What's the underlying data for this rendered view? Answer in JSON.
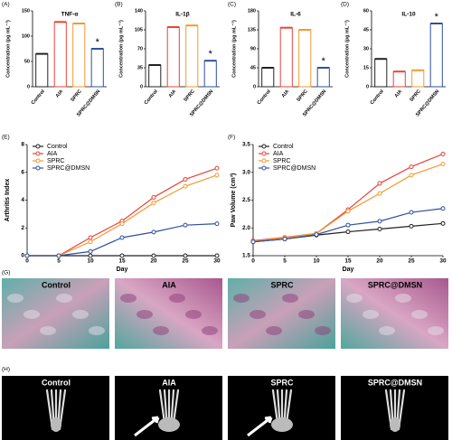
{
  "chart_data": [
    {
      "type": "bar",
      "panel_label": "(A)",
      "title": "TNF-α",
      "y_label": "Concentration (pg mL⁻¹)",
      "categories": [
        "Control",
        "AIA",
        "SPRC",
        "SPRC@DMSN"
      ],
      "values": [
        65,
        128,
        125,
        75
      ],
      "colors": [
        "#222222",
        "#e8433a",
        "#f29a2e",
        "#2f4fa0"
      ],
      "ylim": [
        0,
        150
      ],
      "yticks": [
        0,
        50,
        100,
        150
      ],
      "annotations": [
        {
          "text": "*",
          "category": "SPRC@DMSN"
        }
      ]
    },
    {
      "type": "bar",
      "panel_label": "(B)",
      "title": "IL-1β",
      "y_label": "Concentration (pg mL⁻¹)",
      "categories": [
        "Control",
        "AIA",
        "SPRC",
        "SPRC@DMSN"
      ],
      "values": [
        40,
        110,
        113,
        48
      ],
      "colors": [
        "#222222",
        "#e8433a",
        "#f29a2e",
        "#2f4fa0"
      ],
      "ylim": [
        0,
        140
      ],
      "yticks": [
        0,
        35,
        70,
        105,
        140
      ],
      "annotations": [
        {
          "text": "*",
          "category": "SPRC@DMSN"
        }
      ]
    },
    {
      "type": "bar",
      "panel_label": "(C)",
      "title": "IL-6",
      "y_label": "Concentration (pg mL⁻¹)",
      "categories": [
        "Control",
        "AIA",
        "SPRC",
        "SPRC@DMSN"
      ],
      "values": [
        45,
        140,
        135,
        45
      ],
      "colors": [
        "#222222",
        "#e8433a",
        "#f29a2e",
        "#2f4fa0"
      ],
      "ylim": [
        0,
        180
      ],
      "yticks": [
        0,
        45,
        90,
        135,
        180
      ],
      "annotations": [
        {
          "text": "*",
          "category": "SPRC@DMSN"
        }
      ]
    },
    {
      "type": "bar",
      "panel_label": "(D)",
      "title": "IL-10",
      "y_label": "Concentration (pg mL⁻¹)",
      "categories": [
        "Control",
        "AIA",
        "SPRC",
        "SPRC@DMSN"
      ],
      "values": [
        22,
        12,
        13,
        50
      ],
      "colors": [
        "#222222",
        "#e8433a",
        "#f29a2e",
        "#2f4fa0"
      ],
      "ylim": [
        0,
        60
      ],
      "yticks": [
        0,
        15,
        30,
        45,
        60
      ],
      "annotations": [
        {
          "text": "*",
          "category": "SPRC@DMSN"
        }
      ]
    },
    {
      "type": "line",
      "panel_label": "(E)",
      "x_label": "Day",
      "y_label": "Arthritis Index",
      "x": [
        0,
        5,
        10,
        15,
        20,
        25,
        30
      ],
      "xlim": [
        0,
        30
      ],
      "xticks": [
        0,
        5,
        10,
        15,
        20,
        25,
        30
      ],
      "ylim": [
        0,
        8
      ],
      "yticks": [
        0,
        2,
        4,
        6,
        8
      ],
      "legend": "upper left",
      "series": [
        {
          "name": "Control",
          "color": "#222222",
          "values": [
            0,
            0,
            0,
            0,
            0,
            0,
            0
          ]
        },
        {
          "name": "AIA",
          "color": "#e8433a",
          "values": [
            0,
            0,
            1.3,
            2.5,
            4.2,
            5.5,
            6.3
          ]
        },
        {
          "name": "SPRC",
          "color": "#f29a2e",
          "values": [
            0,
            0,
            1,
            2.3,
            3.8,
            5,
            5.8
          ]
        },
        {
          "name": "SPRC@DMSN",
          "color": "#2f4fa0",
          "values": [
            0,
            0,
            0.3,
            1.3,
            1.7,
            2.2,
            2.3
          ]
        }
      ]
    },
    {
      "type": "line",
      "panel_label": "(F)",
      "x_label": "Day",
      "y_label": "Paw Volume (cm³)",
      "x": [
        0,
        5,
        10,
        15,
        20,
        25,
        30
      ],
      "xlim": [
        0,
        30
      ],
      "xticks": [
        0,
        5,
        10,
        15,
        20,
        25,
        30
      ],
      "ylim": [
        1.5,
        3.5
      ],
      "yticks": [
        1.5,
        {
          "value": 2,
          "label": "2.0"
        },
        2.5,
        {
          "value": 3,
          "label": "3.0"
        },
        3.5
      ],
      "legend": "upper left",
      "series": [
        {
          "name": "Control",
          "color": "#222222",
          "values": [
            1.75,
            1.8,
            1.87,
            1.93,
            1.98,
            2.03,
            2.08
          ]
        },
        {
          "name": "AIA",
          "color": "#e8433a",
          "values": [
            1.77,
            1.83,
            1.9,
            2.33,
            2.8,
            3.1,
            3.33
          ]
        },
        {
          "name": "SPRC",
          "color": "#f29a2e",
          "values": [
            1.76,
            1.82,
            1.9,
            2.3,
            2.62,
            2.95,
            3.15
          ]
        },
        {
          "name": "SPRC@DMSN",
          "color": "#2f4fa0",
          "values": [
            1.75,
            1.8,
            1.88,
            2.05,
            2.12,
            2.28,
            2.35
          ]
        }
      ]
    }
  ],
  "histology": {
    "panel_label": "(G)",
    "captions": [
      "Control",
      "AIA",
      "SPRC",
      "SPRC@DMSN"
    ]
  },
  "ct_images": {
    "panel_label": "(H)",
    "captions": [
      "Control",
      "AIA",
      "SPRC",
      "SPRC@DMSN"
    ]
  }
}
